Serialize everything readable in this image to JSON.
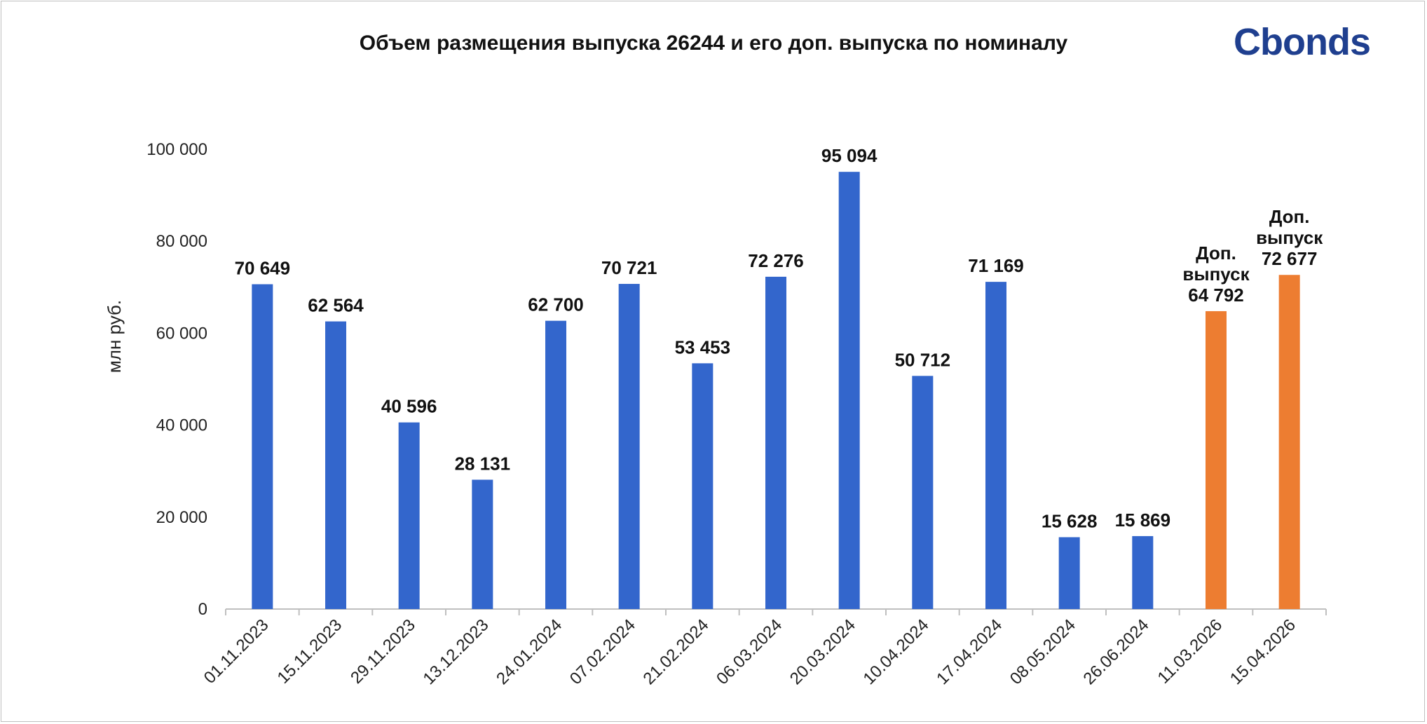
{
  "chart_data": {
    "type": "bar",
    "title": "Объем размещения  выпуска 26244 и его доп. выпуска по номиналу",
    "ylabel": "млн руб.",
    "xlabel": "",
    "ylim": [
      0,
      100000
    ],
    "yticks": [
      0,
      20000,
      40000,
      60000,
      80000,
      100000
    ],
    "ytick_labels": [
      "0",
      "20 000",
      "40 000",
      "60 000",
      "80 000",
      "100 000"
    ],
    "grid": false,
    "legend": "none",
    "categories": [
      "01.11.2023",
      "15.11.2023",
      "29.11.2023",
      "13.12.2023",
      "24.01.2024",
      "07.02.2024",
      "21.02.2024",
      "06.03.2024",
      "20.03.2024",
      "10.04.2024",
      "17.04.2024",
      "08.05.2024",
      "26.06.2024",
      "11.03.2026",
      "15.04.2026"
    ],
    "values": [
      70649,
      62564,
      40596,
      28131,
      62700,
      70721,
      53453,
      72276,
      95094,
      50712,
      71169,
      15628,
      15869,
      64792,
      72677
    ],
    "data_labels": [
      [
        "70 649"
      ],
      [
        "62 564"
      ],
      [
        "40 596"
      ],
      [
        "28 131"
      ],
      [
        "62 700"
      ],
      [
        "70 721"
      ],
      [
        "53 453"
      ],
      [
        "72 276"
      ],
      [
        "95 094"
      ],
      [
        "50 712"
      ],
      [
        "71 169"
      ],
      [
        "15 628"
      ],
      [
        "15 869"
      ],
      [
        "Доп.",
        "выпуск",
        "64 792"
      ],
      [
        "Доп.",
        "выпуск",
        "72 677"
      ]
    ],
    "colors": [
      "#3366cc",
      "#3366cc",
      "#3366cc",
      "#3366cc",
      "#3366cc",
      "#3366cc",
      "#3366cc",
      "#3366cc",
      "#3366cc",
      "#3366cc",
      "#3366cc",
      "#3366cc",
      "#3366cc",
      "#ed7d31",
      "#ed7d31"
    ]
  },
  "logo": {
    "text": "Cbonds"
  }
}
